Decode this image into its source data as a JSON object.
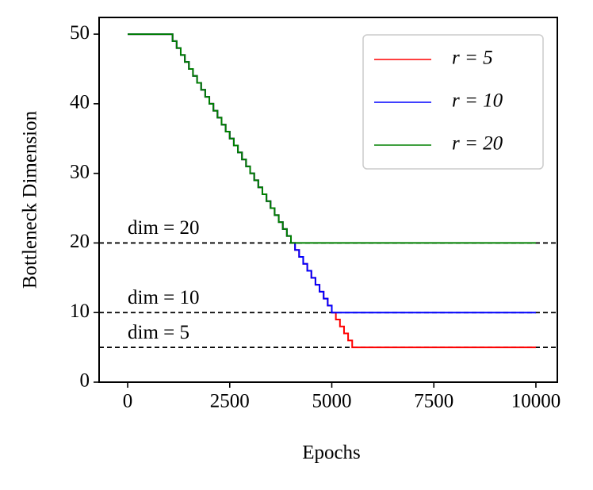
{
  "chart_data": {
    "type": "line",
    "drawstyle": "steps-post",
    "xlabel": "Epochs",
    "ylabel": "Bottleneck Dimension",
    "xlim": [
      -700,
      10525
    ],
    "ylim": [
      0,
      52.4
    ],
    "xticks": [
      0,
      2500,
      5000,
      7500,
      10000
    ],
    "yticks": [
      0,
      10,
      20,
      30,
      40,
      50
    ],
    "legend": "upper right",
    "hlines": [
      {
        "value": 20,
        "label": "dim = 20"
      },
      {
        "value": 10,
        "label": "dim = 10"
      },
      {
        "value": 5,
        "label": "dim = 5"
      }
    ],
    "hline_color": "#000000",
    "series": [
      {
        "name": "r = 5",
        "color": "#ff0000",
        "x": [
          0,
          1000,
          1100,
          1200,
          1300,
          1400,
          1500,
          1600,
          1700,
          1800,
          1900,
          2000,
          2100,
          2200,
          2300,
          2400,
          2500,
          2600,
          2700,
          2800,
          2900,
          3000,
          3100,
          3200,
          3300,
          3400,
          3500,
          3600,
          3700,
          3800,
          3900,
          4000,
          4100,
          4200,
          4300,
          4400,
          4500,
          4600,
          4700,
          4800,
          4900,
          5000,
          5100,
          5200,
          5300,
          5400,
          5500,
          10000
        ],
        "values": [
          50,
          50,
          49,
          48,
          47,
          46,
          45,
          44,
          43,
          42,
          41,
          40,
          39,
          38,
          37,
          36,
          35,
          34,
          33,
          32,
          31,
          30,
          29,
          28,
          27,
          26,
          25,
          24,
          23,
          22,
          21,
          20,
          19,
          18,
          17,
          16,
          15,
          14,
          13,
          12,
          11,
          10,
          9,
          8,
          7,
          6,
          5,
          5
        ]
      },
      {
        "name": "r = 10",
        "color": "#0000ff",
        "x": [
          0,
          1000,
          1100,
          1200,
          1300,
          1400,
          1500,
          1600,
          1700,
          1800,
          1900,
          2000,
          2100,
          2200,
          2300,
          2400,
          2500,
          2600,
          2700,
          2800,
          2900,
          3000,
          3100,
          3200,
          3300,
          3400,
          3500,
          3600,
          3700,
          3800,
          3900,
          4000,
          4100,
          4200,
          4300,
          4400,
          4500,
          4600,
          4700,
          4800,
          4900,
          5000,
          10000
        ],
        "values": [
          50,
          50,
          49,
          48,
          47,
          46,
          45,
          44,
          43,
          42,
          41,
          40,
          39,
          38,
          37,
          36,
          35,
          34,
          33,
          32,
          31,
          30,
          29,
          28,
          27,
          26,
          25,
          24,
          23,
          22,
          21,
          20,
          19,
          18,
          17,
          16,
          15,
          14,
          13,
          12,
          11,
          10,
          10
        ]
      },
      {
        "name": "r = 20",
        "color": "#008000",
        "x": [
          0,
          1000,
          1100,
          1200,
          1300,
          1400,
          1500,
          1600,
          1700,
          1800,
          1900,
          2000,
          2100,
          2200,
          2300,
          2400,
          2500,
          2600,
          2700,
          2800,
          2900,
          3000,
          3100,
          3200,
          3300,
          3400,
          3500,
          3600,
          3700,
          3800,
          3900,
          4000,
          10000
        ],
        "values": [
          50,
          50,
          49,
          48,
          47,
          46,
          45,
          44,
          43,
          42,
          41,
          40,
          39,
          38,
          37,
          36,
          35,
          34,
          33,
          32,
          31,
          30,
          29,
          28,
          27,
          26,
          25,
          24,
          23,
          22,
          21,
          20,
          20
        ]
      }
    ]
  }
}
